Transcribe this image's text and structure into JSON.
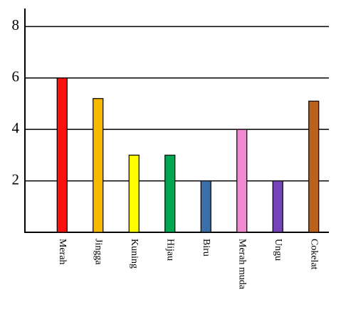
{
  "chart_data": {
    "type": "bar",
    "categories": [
      "Merah",
      "Jingga",
      "Kuning",
      "Hijau",
      "Biru",
      "Merah muda",
      "Ungu",
      "Cokelat"
    ],
    "values": [
      6,
      5.2,
      3,
      3,
      2,
      4,
      2,
      5.1
    ],
    "colors": [
      "#ff1010",
      "#f8b800",
      "#ffff00",
      "#00a651",
      "#3c6fa8",
      "#f28ad2",
      "#7444b8",
      "#b8621e"
    ],
    "ylim": [
      0,
      8.7
    ],
    "yticks": [
      2,
      4,
      6,
      8
    ],
    "grid": true
  }
}
